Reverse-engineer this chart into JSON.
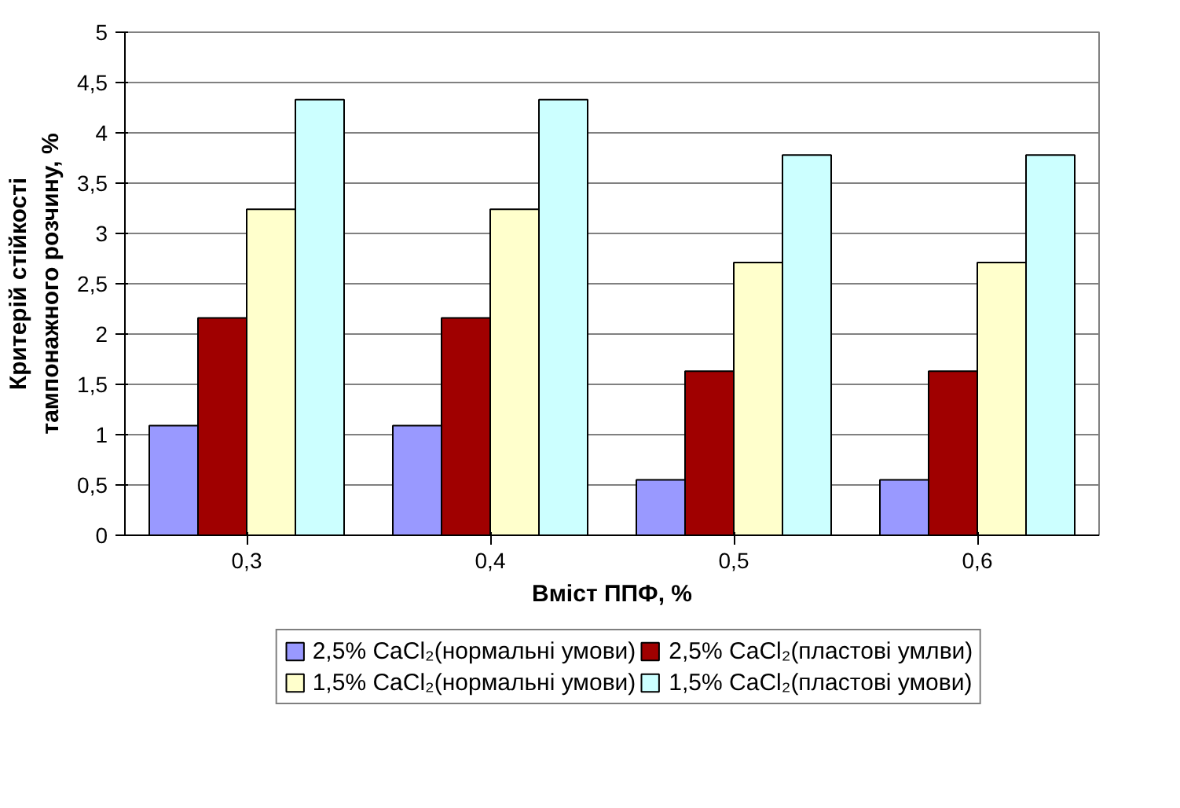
{
  "chart_data": {
    "type": "bar",
    "xlabel": "Вміст ППФ, %",
    "ylabel": "Критерій стійкості\nтампонажного розчину, %",
    "categories": [
      "0,3",
      "0,4",
      "0,5",
      "0,6"
    ],
    "series": [
      {
        "name": "2,5% CaCl₂(нормальні умови)",
        "color": "#9999ff",
        "values": [
          1.09,
          1.09,
          0.55,
          0.55
        ]
      },
      {
        "name": "2,5% CaCl₂(пластові умлви)",
        "color": "#a00000",
        "values": [
          2.16,
          2.16,
          1.63,
          1.63
        ]
      },
      {
        "name": "1,5% CaCl₂(нормальні умови)",
        "color": "#ffffcc",
        "values": [
          3.24,
          3.24,
          2.71,
          2.71
        ]
      },
      {
        "name": "1,5% CaCl₂(пластові умови)",
        "color": "#ccffff",
        "values": [
          4.33,
          4.33,
          3.78,
          3.78
        ]
      }
    ],
    "ylim": [
      0,
      5
    ],
    "yticks": [
      0,
      {
        "value": 0.5,
        "label": "0,5"
      },
      1,
      {
        "value": 1.5,
        "label": "1,5"
      },
      2,
      {
        "value": 2.5,
        "label": "2,5"
      },
      3,
      {
        "value": 3.5,
        "label": "3,5"
      },
      4,
      {
        "value": 4.5,
        "label": "4,5"
      },
      5
    ],
    "grid": "y",
    "legend": "bottom"
  }
}
